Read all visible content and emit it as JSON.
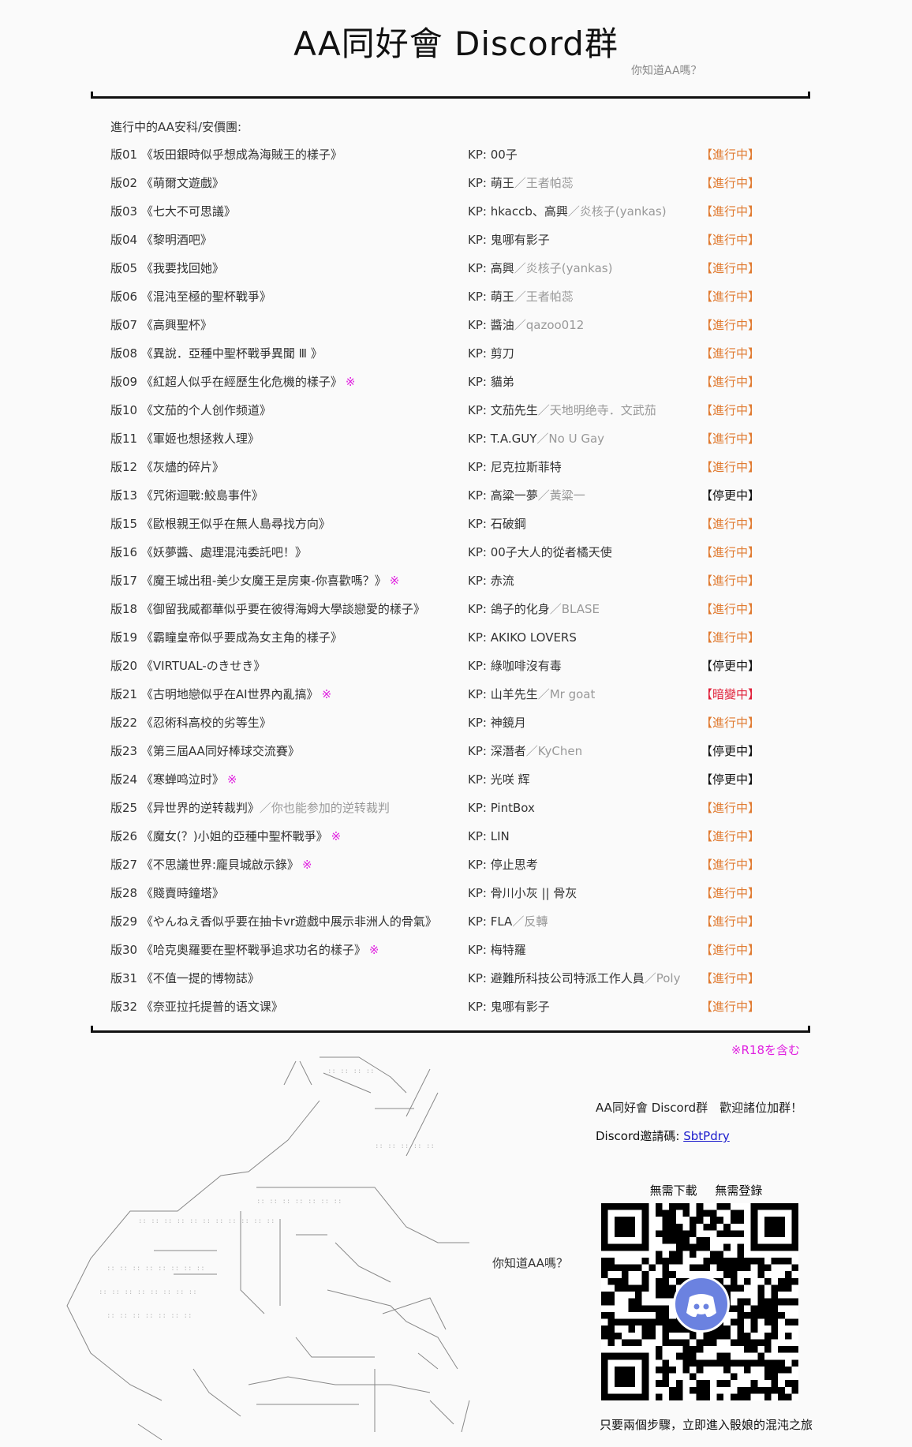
{
  "header": {
    "title": "AA同好會 Discord群",
    "subtitle": "你知道AA嗎？"
  },
  "list": {
    "heading": "進行中的AA安科/安價團:",
    "kp_prefix": "KP: ",
    "r18_mark": "※",
    "rows": [
      {
        "num": "版01",
        "title": "《坂田銀時似乎想成為海賊王的樣子》",
        "kp": "00子",
        "status": "【進行中】",
        "type": "active"
      },
      {
        "num": "版02",
        "title": "《萌爾文遊戲》",
        "kp": "萌王",
        "kp_alt": "／王者帕蕊",
        "status": "【進行中】",
        "type": "active"
      },
      {
        "num": "版03",
        "title": "《七大不可思議》",
        "kp": "hkaccb、高興",
        "kp_alt": "／炎核子(yankas)",
        "status": "【進行中】",
        "type": "active"
      },
      {
        "num": "版04",
        "title": "《黎明酒吧》",
        "kp": "鬼哪有影子",
        "status": "【進行中】",
        "type": "active"
      },
      {
        "num": "版05",
        "title": "《我要找回她》",
        "kp": "高興",
        "kp_alt": "／炎核子(yankas)",
        "status": "【進行中】",
        "type": "active"
      },
      {
        "num": "版06",
        "title": "《混沌至極的聖杯戰爭》",
        "kp": "萌王",
        "kp_alt": "／王者帕蕊",
        "status": "【進行中】",
        "type": "active"
      },
      {
        "num": "版07",
        "title": "《高興聖杯》",
        "kp": "醬油",
        "kp_alt": "／qazoo012",
        "status": "【進行中】",
        "type": "active"
      },
      {
        "num": "版08",
        "title": "《異說．亞種中聖杯戰爭異聞 Ⅲ 》",
        "kp": "剪刀",
        "status": "【進行中】",
        "type": "active"
      },
      {
        "num": "版09",
        "title": "《紅超人似乎在經歷生化危機的樣子》",
        "r18": true,
        "kp": "貓弟",
        "status": "【進行中】",
        "type": "active"
      },
      {
        "num": "版10",
        "title": "《文茄的个人创作频道》",
        "kp": "文茄先生",
        "kp_alt": "／天地明绝寺．文武茄",
        "status": "【進行中】",
        "type": "active"
      },
      {
        "num": "版11",
        "title": "《軍姬也想拯救人理》",
        "kp": "T.A.GUY",
        "kp_alt": "／No U Gay",
        "status": "【進行中】",
        "type": "active"
      },
      {
        "num": "版12",
        "title": "《灰燼的碎片》",
        "kp": "尼克拉斯菲特",
        "status": "【進行中】",
        "type": "active"
      },
      {
        "num": "版13",
        "title": "《咒術迴戰:鮫島事件》",
        "kp": "高粱一夢",
        "kp_alt": "／黃粱一",
        "status": "【停更中】",
        "type": "paused"
      },
      {
        "num": "版15",
        "title": "《歐根親王似乎在無人島尋找方向》",
        "kp": "石破鋼",
        "status": "【進行中】",
        "type": "active"
      },
      {
        "num": "版16",
        "title": "《妖夢醬、處理混沌委託吧！》",
        "kp": "00子大人的從者橘天使",
        "status": "【進行中】",
        "type": "active"
      },
      {
        "num": "版17",
        "title": "《魔王城出租-美少女魔王是房東-你喜歡嗎？》",
        "r18": true,
        "kp": "赤流",
        "status": "【進行中】",
        "type": "active"
      },
      {
        "num": "版18",
        "title": "《御留我威都華似乎要在彼得海姆大學談戀愛的樣子》",
        "kp": "鴿子的化身",
        "kp_alt": "／BLASE",
        "status": "【進行中】",
        "type": "active"
      },
      {
        "num": "版19",
        "title": "《霸瞳皇帝似乎要成為女主角的樣子》",
        "kp": "AKIKO LOVERS",
        "status": "【進行中】",
        "type": "active"
      },
      {
        "num": "版20",
        "title": "《VIRTUAL-のきせき》",
        "kp": "綠咖啡沒有毒",
        "status": "【停更中】",
        "type": "paused"
      },
      {
        "num": "版21",
        "title": "《古明地戀似乎在AI世界內亂搞》",
        "r18": true,
        "kp": "山羊先生",
        "kp_alt": "／Mr goat",
        "status": "【暗變中】",
        "type": "dark"
      },
      {
        "num": "版22",
        "title": "《忍術科高校的劣等生》",
        "kp": "神鏡月",
        "status": "【進行中】",
        "type": "active"
      },
      {
        "num": "版23",
        "title": "《第三屆AA同好棒球交流賽》",
        "kp": "深潛者",
        "kp_alt": "／KyChen",
        "status": "【停更中】",
        "type": "paused"
      },
      {
        "num": "版24",
        "title": "《寒蝉鸣泣时》",
        "r18": true,
        "kp": "光咲 辉",
        "status": "【停更中】",
        "type": "paused"
      },
      {
        "num": "版25",
        "title": "《异世界的逆转裁判》",
        "title_note": "／你也能参加的逆转裁判",
        "kp": "PintBox",
        "status": "【進行中】",
        "type": "active"
      },
      {
        "num": "版26",
        "title": "《魔女(？)小姐的亞種中聖杯戰爭》",
        "r18": true,
        "kp": "LIN",
        "status": "【進行中】",
        "type": "active"
      },
      {
        "num": "版27",
        "title": "《不思議世界:龐貝城啟示錄》",
        "r18": true,
        "kp": "停止思考",
        "status": "【進行中】",
        "type": "active"
      },
      {
        "num": "版28",
        "title": "《賤賣時鐘塔》",
        "kp": "骨川小灰 || 骨灰",
        "status": "【進行中】",
        "type": "active"
      },
      {
        "num": "版29",
        "title": "《やんねえ香似乎要在抽卡vr遊戲中展示非洲人的骨氣》",
        "kp": "FLA",
        "kp_alt": "／反轉",
        "status": "【進行中】",
        "type": "active"
      },
      {
        "num": "版30",
        "title": "《哈克奧羅要在聖杯戰爭追求功名的樣子》",
        "r18": true,
        "kp": "梅特羅",
        "status": "【進行中】",
        "type": "active"
      },
      {
        "num": "版31",
        "title": "《不值一提的博物誌》",
        "kp": "避難所科技公司特派工作人員",
        "kp_alt": "／Poly",
        "status": "【進行中】",
        "type": "active"
      },
      {
        "num": "版32",
        "title": "《奈亚拉托提普的语文课》",
        "kp": "鬼哪有影子",
        "status": "【進行中】",
        "type": "active"
      }
    ],
    "r18_note": "※R18を含む"
  },
  "footer": {
    "side_text": "你知道AA嗎？",
    "welcome": "AA同好會 Discord群　歡迎諸位加群！",
    "invite_label": "Discord邀請碼: ",
    "invite_code": "SbtPdry",
    "qr_top": "無需下載 無需登錄",
    "qr_caption": "只要兩個步驟，立即進入骰娘的混沌之旅"
  },
  "colors": {
    "active": "#e07a30",
    "paused": "#111111",
    "dark": "#e0203a",
    "r18": "#e020e0",
    "muted": "#999999",
    "discord": "#6b82e0"
  }
}
